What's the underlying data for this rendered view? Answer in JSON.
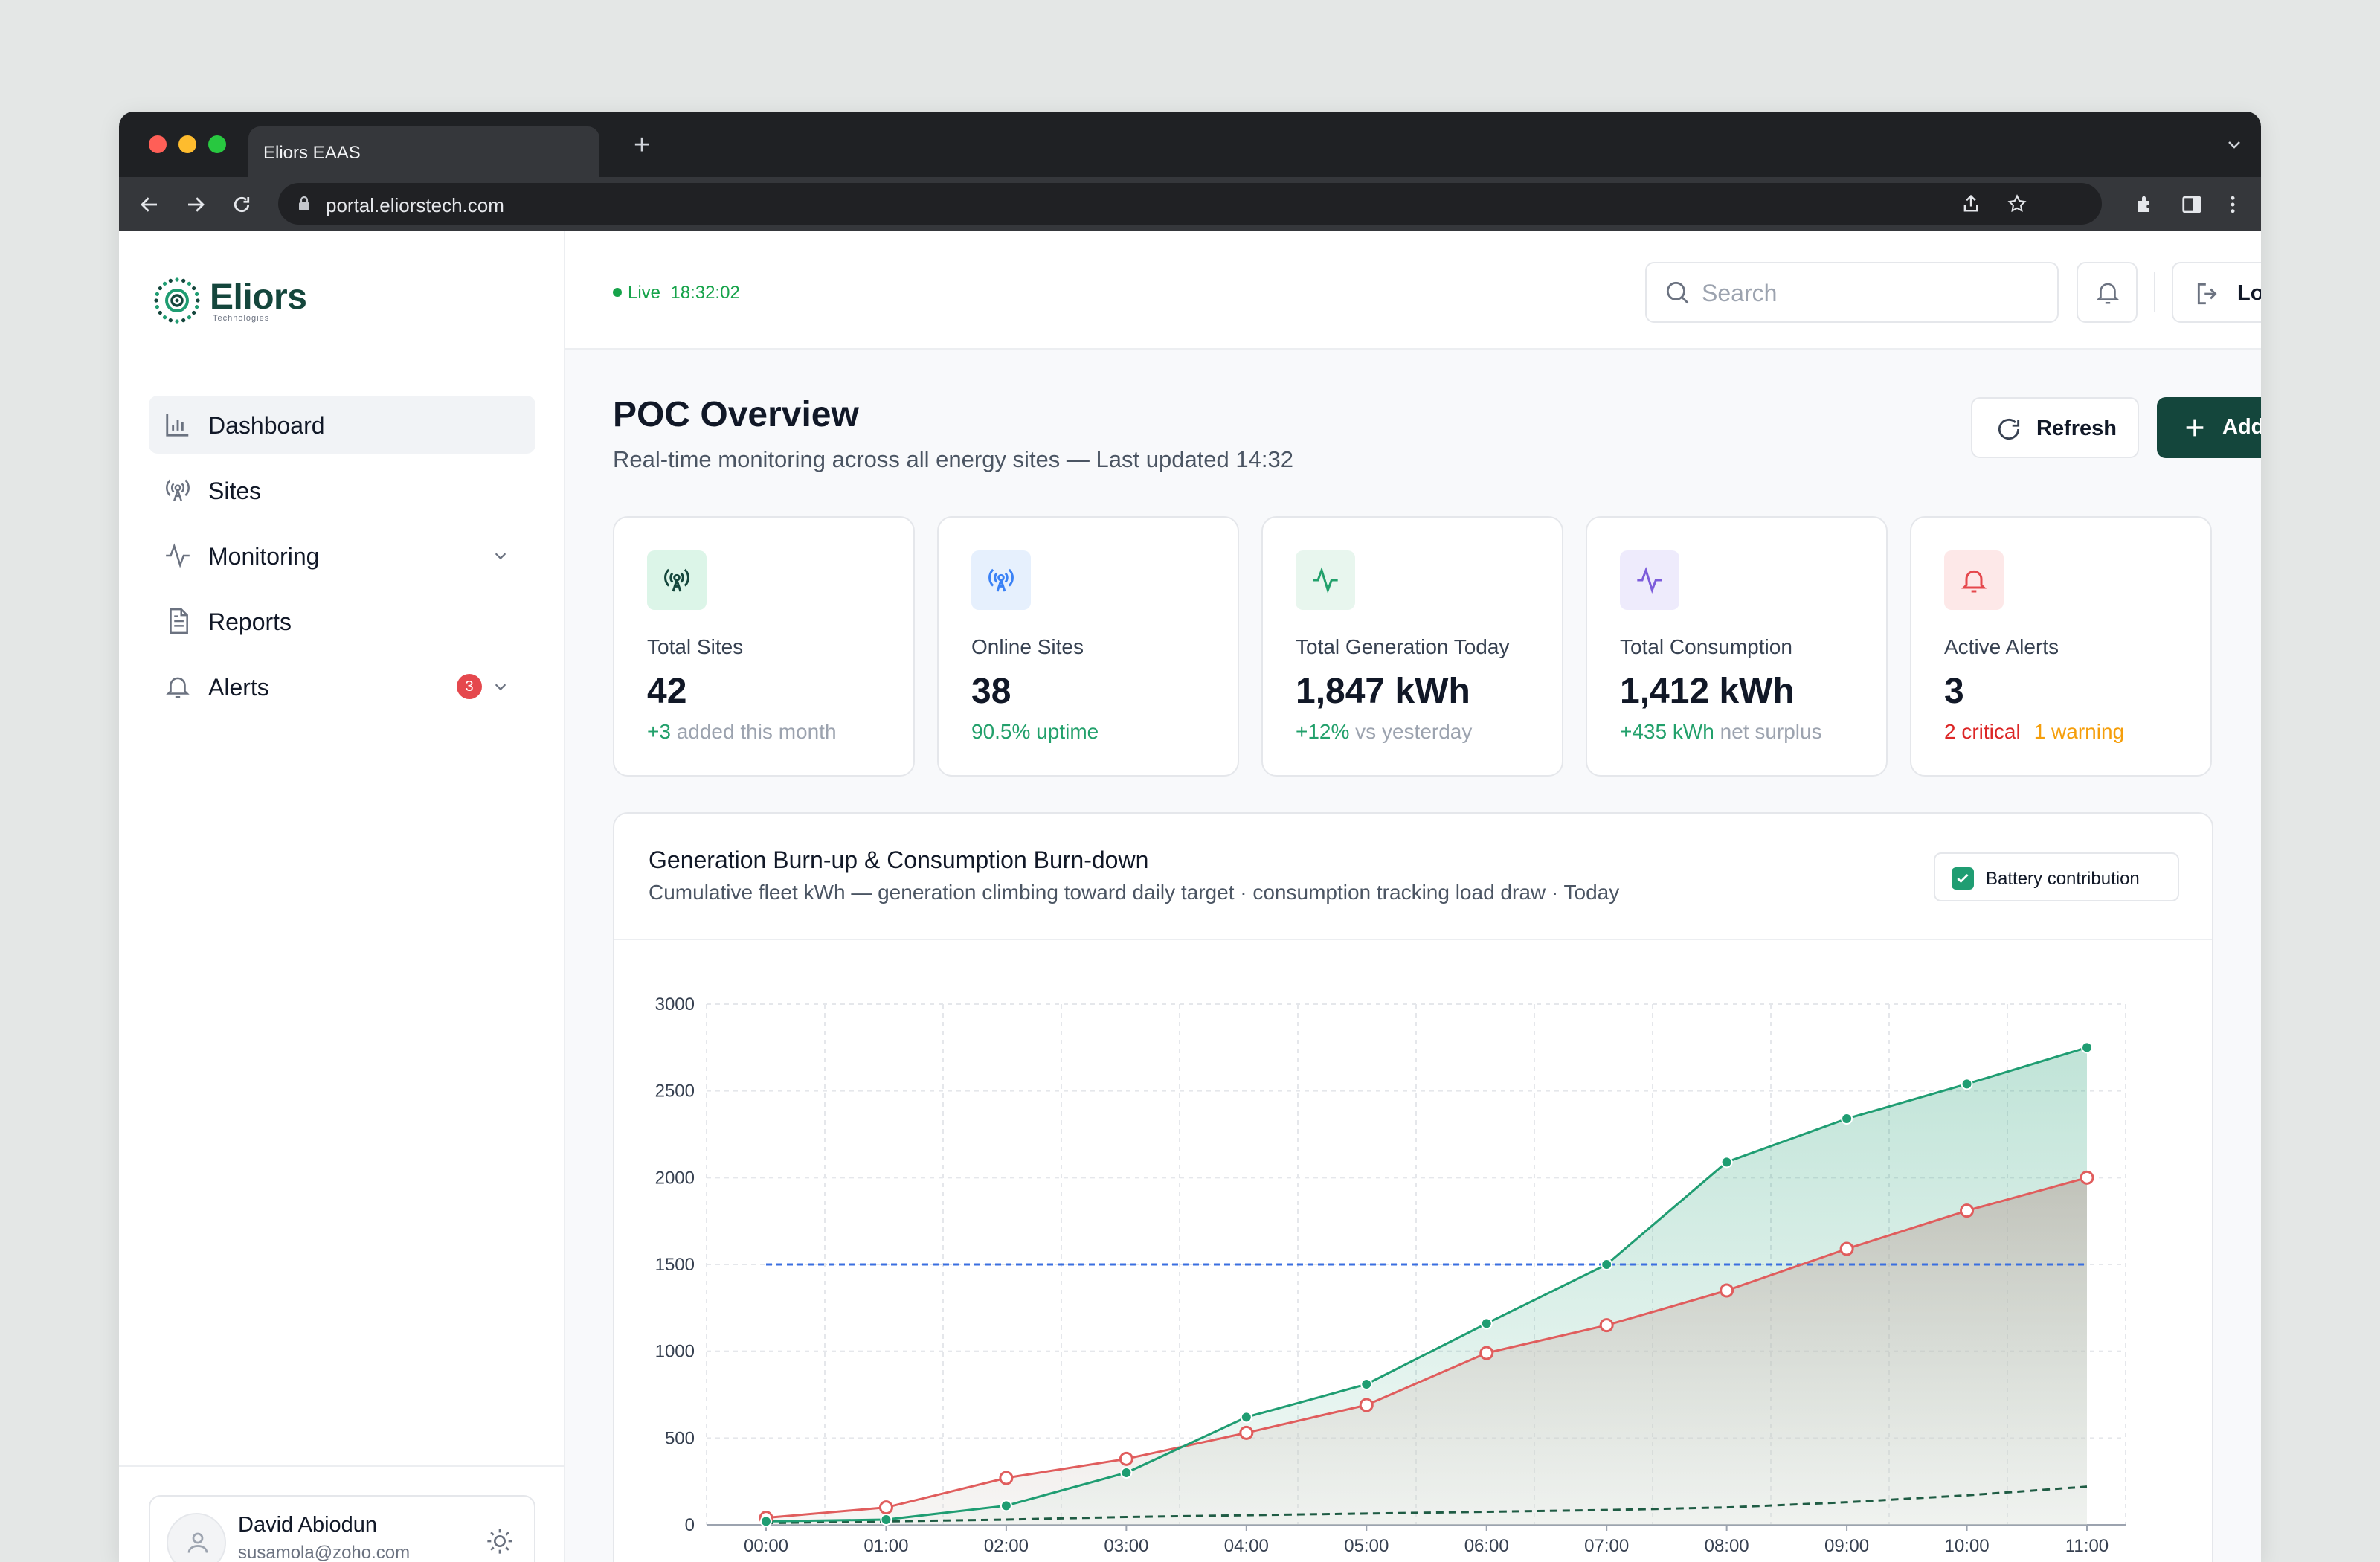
{
  "browser": {
    "tab_title": "Eliors EAAS",
    "new_tab": "+",
    "url": "portal.eliorstech.com"
  },
  "brand": {
    "name": "Eliors",
    "tagline": "Technologies",
    "color": "#14463c"
  },
  "sidebar": {
    "items": [
      {
        "label": "Dashboard",
        "icon": "bar-chart-icon",
        "active": true
      },
      {
        "label": "Sites",
        "icon": "antenna-icon"
      },
      {
        "label": "Monitoring",
        "icon": "activity-icon",
        "expandable": true
      },
      {
        "label": "Reports",
        "icon": "document-icon"
      },
      {
        "label": "Alerts",
        "icon": "bell-icon",
        "badge": "3",
        "expandable": true
      }
    ],
    "user": {
      "name": "David Abiodun",
      "email": "susamola@zoho.com"
    }
  },
  "topbar": {
    "live_label": "Live",
    "live_time": "18:32:02",
    "search_placeholder": "Search",
    "logout_label": "Logout"
  },
  "page": {
    "title": "POC Overview",
    "subtitle": "Real-time monitoring across all energy sites — Last updated 14:32",
    "refresh_label": "Refresh",
    "add_site_label": "Add Site"
  },
  "kpis": [
    {
      "label": "Total Sites",
      "value": "42",
      "note": "+3",
      "note_rest": " added this month",
      "note_color": "#22a06b",
      "icon": "antenna-icon",
      "icon_bg": "#dcf5e8",
      "icon_color": "#14463c"
    },
    {
      "label": "Online Sites",
      "value": "38",
      "note": "90.5% uptime",
      "note_rest": "",
      "note_color": "#22a06b",
      "icon": "antenna-icon",
      "icon_bg": "#e6f0fd",
      "icon_color": "#3b82f6"
    },
    {
      "label": "Total Generation Today",
      "value": "1,847 kWh",
      "note": "+12%",
      "note_rest": " vs yesterday",
      "note_color": "#22a06b",
      "icon": "activity-icon",
      "icon_bg": "#e8f6ee",
      "icon_color": "#22a06b"
    },
    {
      "label": "Total Consumption",
      "value": "1,412 kWh",
      "note": "+435 kWh",
      "note_rest": " net surplus",
      "note_color": "#22a06b",
      "icon": "activity-icon",
      "icon_bg": "#eeebfc",
      "icon_color": "#7c5cdb"
    },
    {
      "label": "Active Alerts",
      "value": "3",
      "note": "2 critical",
      "note_rest": "1 warning",
      "note_color": "#dc2626",
      "note_rest_color": "#f59e0b",
      "icon": "bell-icon",
      "icon_bg": "#fde8e8",
      "icon_color": "#e5484d"
    }
  ],
  "chart_card": {
    "title": "Generation Burn-up & Consumption Burn-down",
    "subtitle": "Cumulative fleet kWh — generation climbing toward daily target · consumption tracking load draw · Today",
    "toggle_label": "Battery contribution",
    "toggle_checked": true
  },
  "chart_data": {
    "type": "area",
    "categories": [
      "00:00",
      "01:00",
      "02:00",
      "03:00",
      "04:00",
      "05:00",
      "06:00",
      "07:00",
      "08:00",
      "09:00",
      "10:00",
      "11:00"
    ],
    "ylim": [
      0,
      3000
    ],
    "yticks": [
      0,
      500,
      1000,
      1500,
      2000,
      2500,
      3000
    ],
    "grid": true,
    "series": [
      {
        "values": [
          20,
          30,
          110,
          300,
          620,
          810,
          1160,
          1500,
          2090,
          2340,
          2540,
          2750
        ],
        "color": "#1f9d72",
        "style": "filled-area"
      },
      {
        "values": [
          40,
          100,
          270,
          380,
          530,
          690,
          990,
          1150,
          1350,
          1590,
          1810,
          2000
        ],
        "color": "#e05d5d",
        "style": "filled-area"
      },
      {
        "values": [
          1500,
          1500,
          1500,
          1500,
          1500,
          1500,
          1500,
          1500,
          1500,
          1500,
          1500,
          1500
        ],
        "color": "#3b6fe0",
        "style": "dashed"
      },
      {
        "values": [
          10,
          20,
          30,
          45,
          55,
          65,
          75,
          85,
          100,
          130,
          170,
          220
        ],
        "color": "#1f5c44",
        "style": "dashed"
      }
    ]
  }
}
